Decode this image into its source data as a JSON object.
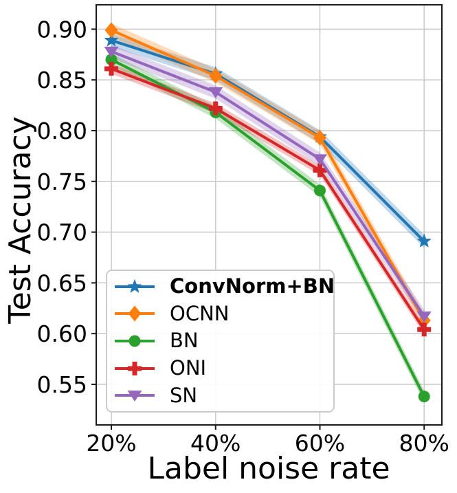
{
  "figure": {
    "background": "#ffffff"
  },
  "chart_data": {
    "type": "line",
    "title": "",
    "xlabel": "Label noise rate",
    "ylabel": "Test Accuracy",
    "x_categories": [
      "20%",
      "40%",
      "60%",
      "80%"
    ],
    "x_values": [
      20,
      40,
      60,
      80
    ],
    "xlim": [
      17.1,
      83.4
    ],
    "ylim": [
      0.51,
      0.924
    ],
    "yticks": [
      0.9,
      0.85,
      0.8,
      0.75,
      0.7,
      0.65,
      0.6,
      0.55
    ],
    "ytick_labels": [
      "0.90",
      "0.85",
      "0.80",
      "0.75",
      "0.70",
      "0.65",
      "0.60",
      "0.55"
    ],
    "grid": true,
    "grid_color": "#cccccc",
    "axis_color": "#1a1a1a",
    "legend_position": "lower-left",
    "series": [
      {
        "name": "ConvNorm+BN",
        "bold": true,
        "color": "#1f77b4",
        "marker": "star",
        "values": [
          0.889,
          0.856,
          0.794,
          0.691
        ],
        "band": 0.0065
      },
      {
        "name": "OCNN",
        "bold": false,
        "color": "#ff7f0e",
        "marker": "diamond",
        "values": [
          0.899,
          0.854,
          0.793,
          0.613
        ],
        "band": 0.0065
      },
      {
        "name": "BN",
        "bold": false,
        "color": "#2ca02c",
        "marker": "circle",
        "values": [
          0.87,
          0.818,
          0.741,
          0.538
        ],
        "band": 0.006
      },
      {
        "name": "ONI",
        "bold": false,
        "color": "#d62728",
        "marker": "plus",
        "values": [
          0.861,
          0.822,
          0.761,
          0.604
        ],
        "band": 0.005
      },
      {
        "name": "SN",
        "bold": false,
        "color": "#9467bd",
        "marker": "triangle-down",
        "values": [
          0.878,
          0.838,
          0.772,
          0.617
        ],
        "band": 0.0065
      }
    ]
  }
}
